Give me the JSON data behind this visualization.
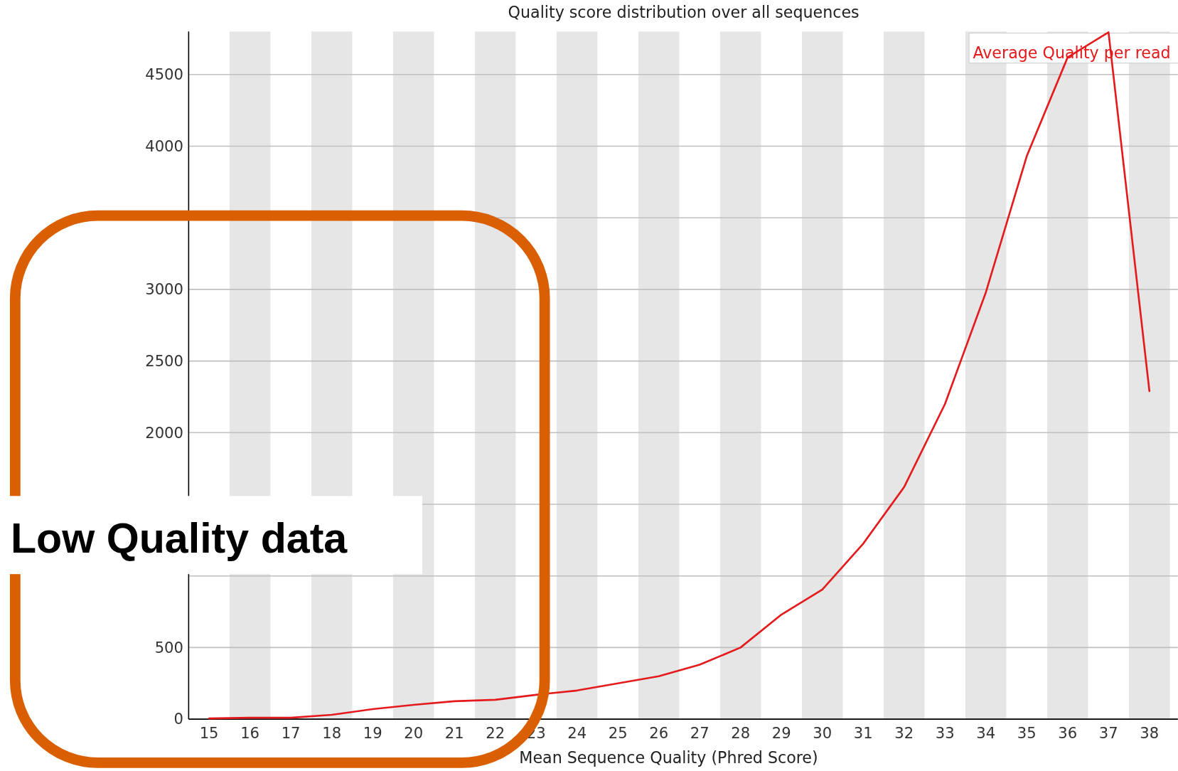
{
  "chart_data": {
    "type": "line",
    "title": "Quality score distribution over all sequences",
    "xlabel": "Mean Sequence Quality (Phred Score)",
    "categories": [
      "15",
      "16",
      "17",
      "18",
      "19",
      "20",
      "21",
      "22",
      "23",
      "24",
      "25",
      "26",
      "27",
      "28",
      "29",
      "30",
      "31",
      "32",
      "33",
      "34",
      "35",
      "36",
      "37",
      "38"
    ],
    "series": [
      {
        "name": "Average Quality per read",
        "color": "#e41a1c",
        "values": [
          5,
          10,
          10,
          30,
          70,
          100,
          125,
          135,
          170,
          200,
          250,
          300,
          380,
          500,
          730,
          905,
          1225,
          1620,
          2200,
          2980,
          3930,
          4620,
          4795,
          2290
        ]
      }
    ],
    "ylim": [
      0,
      4800
    ],
    "yticks": [
      0,
      500,
      {
        "value": 1000,
        "label": null
      },
      {
        "value": 1500,
        "label": null
      },
      2000,
      2500,
      3000,
      {
        "value": 3500,
        "label": null
      },
      4000,
      4500
    ],
    "grid": "y",
    "legend": "top right",
    "marker": "none",
    "line_style": "solid",
    "annotations": [
      "Low Quality data"
    ]
  }
}
